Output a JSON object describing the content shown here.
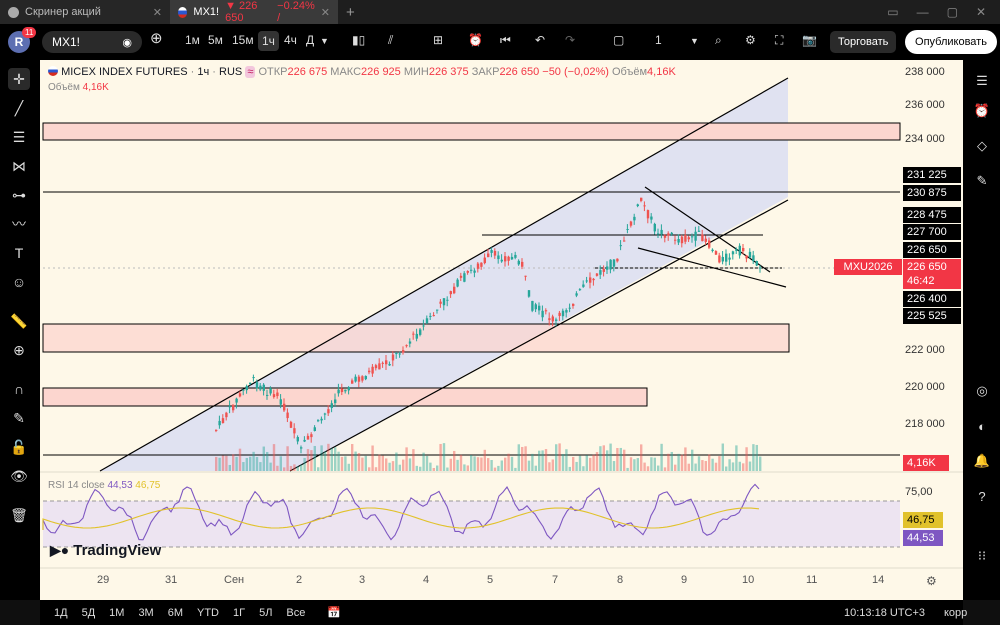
{
  "tabs": [
    {
      "label": "Скринер акций"
    },
    {
      "symbol": "MX1!",
      "price": "▼ 226 650",
      "change": "−0.24% /"
    }
  ],
  "toolbar": {
    "badge": "11",
    "avatar": "R",
    "symbol": "MX1!",
    "intervals": [
      "1м",
      "5м",
      "15м",
      "1ч",
      "4ч",
      "Д"
    ],
    "layout_count": "1",
    "trade_label": "Торговать",
    "publish_label": "Опубликовать"
  },
  "legend": {
    "title": "MICEX INDEX FUTURES",
    "interval": "1ч",
    "exchange": "RUS",
    "open_label": "ОТКР",
    "open": "226 675",
    "high_label": "МАКС",
    "high": "226 925",
    "low_label": "МИН",
    "low": "226 375",
    "close_label": "ЗАКР",
    "close": "226 650",
    "change": "−50 (−0,02%)",
    "vol_label": "Объём",
    "vol": "4,16K"
  },
  "rsi": {
    "label": "RSI 14 close",
    "rsi": "44,53",
    "ma": "46,75"
  },
  "price_axis": [
    "238 000",
    "236 000",
    "234 000",
    "222 000",
    "220 000",
    "218 000"
  ],
  "price_marks": [
    {
      "text": "231 225",
      "y": 174
    },
    {
      "text": "230 875",
      "y": 192
    },
    {
      "text": "228 475",
      "y": 214
    },
    {
      "text": "227 700",
      "y": 231
    },
    {
      "text": "226 650",
      "y": 249
    },
    {
      "text": "226 400",
      "y": 298
    },
    {
      "text": "225 525",
      "y": 316
    }
  ],
  "current": {
    "symbol": "MXU2026",
    "price": "226 650",
    "countdown": "46:42"
  },
  "volume_badge": "4,16K",
  "rsi_axis": [
    "75,00"
  ],
  "rsi_marks": {
    "ma": "46,75",
    "rsi": "44,53"
  },
  "x_labels": [
    "29",
    "31",
    "Сен",
    "2",
    "3",
    "4",
    "5",
    "7",
    "8",
    "9",
    "10",
    "11",
    "14"
  ],
  "bottom": {
    "ranges": [
      "1Д",
      "5Д",
      "1М",
      "3М",
      "6М",
      "YTD",
      "1Г",
      "5Л",
      "Все"
    ],
    "time": "10:13:18 UTC+3",
    "korr": "корр"
  },
  "watermark": "TradingView",
  "colors": {
    "bull": "#26a69a",
    "bear": "#ef5350",
    "channel": "#d8dcf2",
    "zone": "#fcd6cf",
    "rsi": "#7e57c2",
    "rsi_ma": "#e1c22b"
  }
}
